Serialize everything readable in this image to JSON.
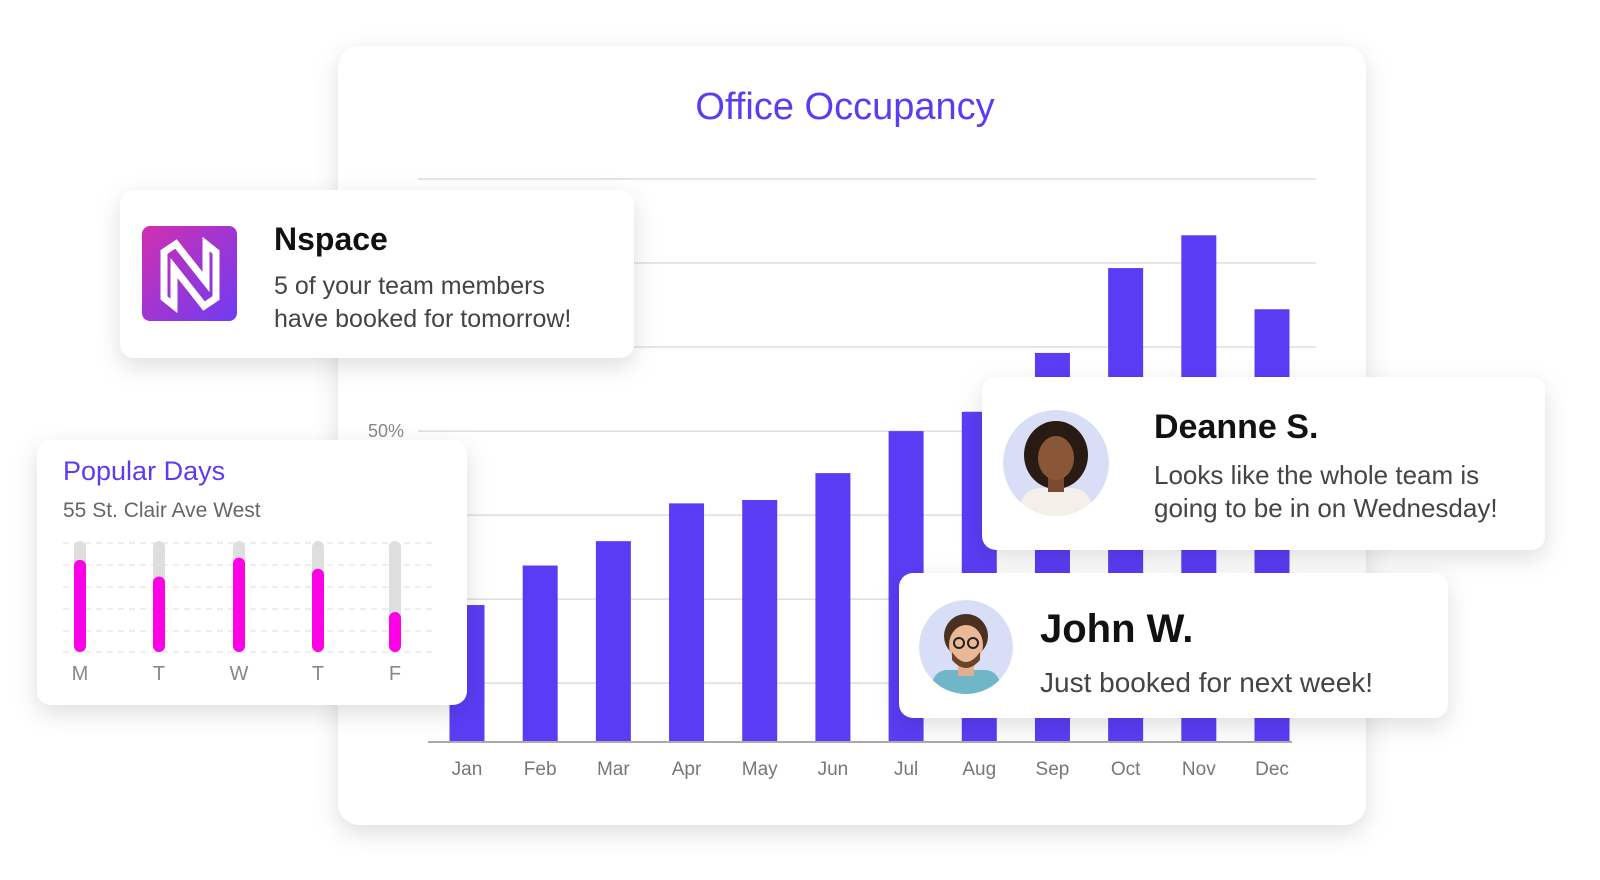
{
  "chart_data": {
    "type": "bar",
    "title": "Office Occupancy",
    "categories": [
      "Jan",
      "Feb",
      "Mar",
      "Apr",
      "May",
      "Jun",
      "Jul",
      "Aug",
      "Sep",
      "Oct",
      "Nov",
      "Dec"
    ],
    "values": [
      29.3,
      34,
      36.9,
      41.4,
      41.8,
      45,
      50,
      52.3,
      59.3,
      69.4,
      73.3,
      64.5
    ],
    "color": "#5b3cf5",
    "ylim": [
      13,
      80
    ],
    "yticks": [
      {
        "value": 50,
        "label": "50%"
      }
    ],
    "gridlines": [
      20,
      30,
      40,
      50,
      60,
      70,
      80
    ],
    "grid": true
  },
  "notification": {
    "app": "Nspace",
    "message_lines": [
      "5 of your team members",
      "have booked for tomorrow!"
    ]
  },
  "popular_days": {
    "title": "Popular Days",
    "subtitle": "55 St. Clair Ave West",
    "days": [
      "M",
      "T",
      "W",
      "T",
      "F"
    ],
    "values": [
      83,
      68,
      85,
      75,
      36
    ],
    "color": "#ff00e6"
  },
  "messages": [
    {
      "name": "Deanne S.",
      "lines": [
        "Looks like the whole team is",
        "going to be in on Wednesday!"
      ]
    },
    {
      "name": "John W.",
      "lines": [
        "Just booked for next week!"
      ]
    }
  ]
}
